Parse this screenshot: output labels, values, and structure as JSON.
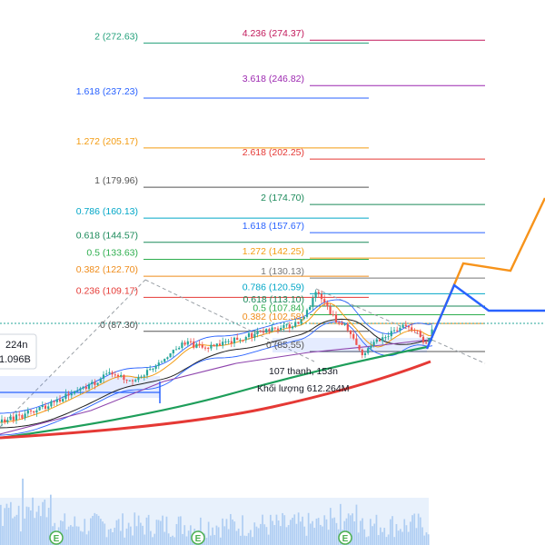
{
  "chart_data": {
    "type": "candlestick",
    "left_fib": [
      {
        "ratio": "2",
        "price": "272.63",
        "label": "2 (272.63)",
        "color": "#22a07a"
      },
      {
        "ratio": "1.618",
        "price": "237.23",
        "label": "1.618 (237.23)",
        "color": "#2962ff"
      },
      {
        "ratio": "1.272",
        "price": "205.17",
        "label": "1.272 (205.17)",
        "color": "#f39c12"
      },
      {
        "ratio": "1",
        "price": "179.96",
        "label": "1 (179.96)",
        "color": "#555555"
      },
      {
        "ratio": "0.786",
        "price": "160.13",
        "label": "0.786 (160.13)",
        "color": "#00a6c7"
      },
      {
        "ratio": "0.618",
        "price": "144.57",
        "label": "0.618 (144.57)",
        "color": "#1b8a5a"
      },
      {
        "ratio": "0.5",
        "price": "133.63",
        "label": "0.5 (133.63)",
        "color": "#2eae4e"
      },
      {
        "ratio": "0.382",
        "price": "122.70",
        "label": "0.382 (122.70)",
        "color": "#ef8c1a"
      },
      {
        "ratio": "0.236",
        "price": "109.17",
        "label": "0.236 (109.17)",
        "color": "#e53935"
      },
      {
        "ratio": "0",
        "price": "87.30",
        "label": "0 (87.30)",
        "color": "#555555"
      }
    ],
    "right_fib": [
      {
        "ratio": "4.236",
        "price": "274.37",
        "label": "4.236 (274.37)",
        "color": "#c2185b"
      },
      {
        "ratio": "3.618",
        "price": "246.82",
        "label": "3.618 (246.82)",
        "color": "#9c27b0"
      },
      {
        "ratio": "2.618",
        "price": "202.25",
        "label": "2.618 (202.25)",
        "color": "#e53935"
      },
      {
        "ratio": "2",
        "price": "174.70",
        "label": "2 (174.70)",
        "color": "#1b8a5a"
      },
      {
        "ratio": "1.618",
        "price": "157.67",
        "label": "1.618 (157.67)",
        "color": "#2962ff"
      },
      {
        "ratio": "1.272",
        "price": "142.25",
        "label": "1.272 (142.25)",
        "color": "#f39c12"
      },
      {
        "ratio": "1",
        "price": "130.13",
        "label": "1 (130.13)",
        "color": "#777777"
      },
      {
        "ratio": "0.786",
        "price": "120.59",
        "label": "0.786 (120.59)",
        "color": "#00a6c7"
      },
      {
        "ratio": "0.618",
        "price": "113.10",
        "label": "0.618 (113.10)",
        "color": "#1b8a5a"
      },
      {
        "ratio": "0.5",
        "price": "107.84",
        "label": "0.5 (107.84)",
        "color": "#2eae4e"
      },
      {
        "ratio": "0.382",
        "price": "102.58",
        "label": "0.382 (102.58)",
        "color": "#ef8c1a"
      },
      {
        "ratio": "0",
        "price": "85.55",
        "label": "0 (85.55)",
        "color": "#555555"
      }
    ],
    "info_box": {
      "line1": "224n",
      "line2": "1.096B"
    },
    "measure_box": {
      "line1": "107 thanh, 153n",
      "line2": "Khối lượng 612.264M"
    },
    "event_marker": "E",
    "projection_orange": "orange projected path",
    "projection_blue": "blue projected path",
    "colors": {
      "up": "#26a69a",
      "down": "#ef5350",
      "ma_red": "#e53935",
      "ma_green": "#1e9e5a",
      "ma_purple": "#8e44ad",
      "projection_orange": "#f7931a",
      "projection_blue": "#2962ff",
      "volume": "#9fc3f0"
    }
  }
}
